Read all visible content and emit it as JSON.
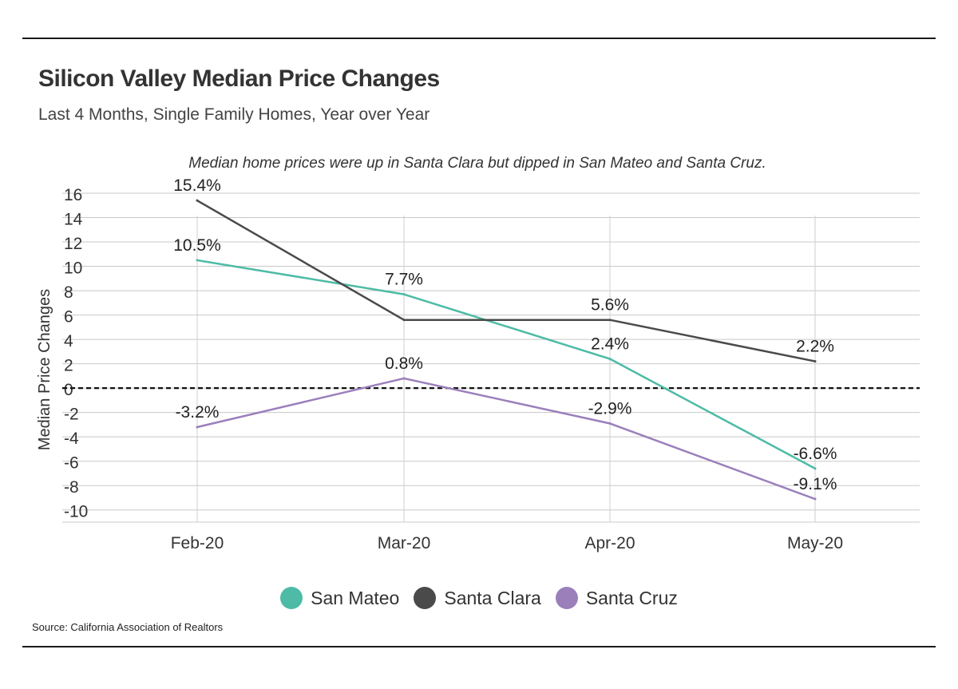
{
  "header": {
    "title": "Silicon Valley Median Price Changes",
    "subtitle": "Last 4 Months, Single Family Homes, Year over Year"
  },
  "source": "Source:  California Association of Realtors",
  "chart_data": {
    "type": "line",
    "annotation": "Median home prices were up in Santa Clara but dipped in San Mateo and Santa Cruz.",
    "categories": [
      "Feb-20",
      "Mar-20",
      "Apr-20",
      "May-20"
    ],
    "ylabel": "Median Price Changes",
    "xlabel": "",
    "ylim": [
      -11,
      16
    ],
    "yticks": [
      16,
      14,
      12,
      10,
      8,
      6,
      4,
      2,
      0,
      -2,
      -4,
      -6,
      -8,
      -10
    ],
    "baseline": 0,
    "grid": true,
    "legend_position": "bottom-center",
    "series": [
      {
        "name": "San Mateo",
        "color": "#4dbba6",
        "values": [
          10.5,
          7.7,
          2.4,
          -6.6
        ],
        "labels": [
          "10.5%",
          "7.7%",
          "2.4%",
          "-6.6%"
        ]
      },
      {
        "name": "Santa Clara",
        "color": "#4a4a4a",
        "values": [
          15.4,
          5.6,
          5.6,
          2.2
        ],
        "labels": [
          "15.4%",
          "",
          "5.6%",
          "2.2%"
        ]
      },
      {
        "name": "Santa Cruz",
        "color": "#9b7fbb",
        "values": [
          -3.2,
          0.8,
          -2.9,
          -9.1
        ],
        "labels": [
          "-3.2%",
          "0.8%",
          "-2.9%",
          "-9.1%"
        ]
      }
    ]
  }
}
